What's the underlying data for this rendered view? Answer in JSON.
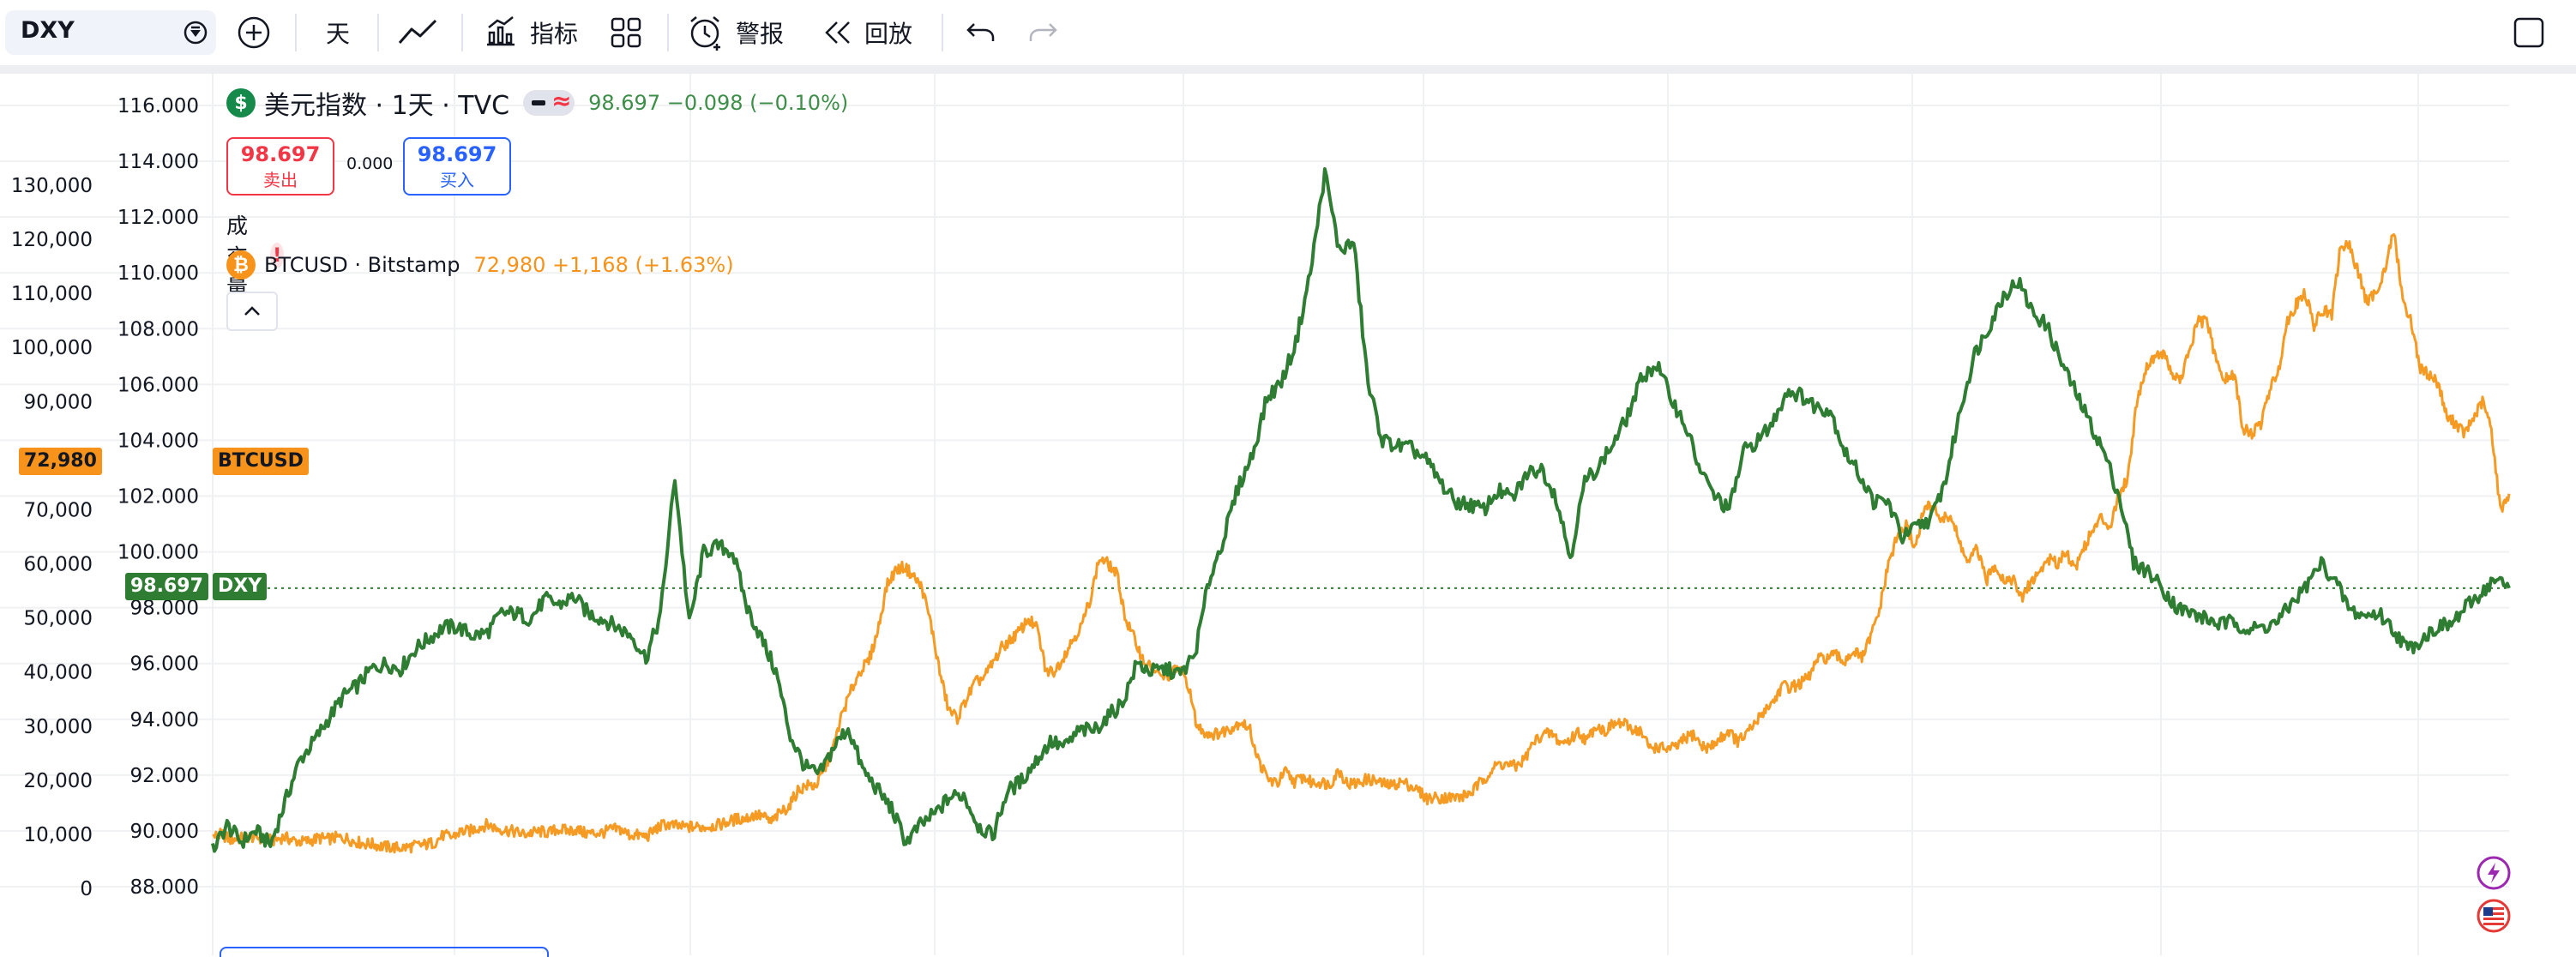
{
  "toolbar": {
    "symbol": "DXY",
    "interval": "天",
    "indicators_label": "指标",
    "alerts_label": "警报",
    "replay_label": "回放"
  },
  "legend": {
    "main_title": "美元指数 · 1天 · TVC",
    "main_values": "98.697 −0.098 (−0.10%)",
    "sell_price": "98.697",
    "sell_label": "卖出",
    "spread": "0.000",
    "buy_price": "98.697",
    "buy_label": "买入",
    "volume_label": "成交量",
    "warning_glyph": "!",
    "compare_title": "BTCUSD · Bitstamp",
    "compare_values": "72,980 +1,168 (+1.63%)"
  },
  "tags": {
    "btc_left_value": "72,980",
    "btc_series_tag": "BTCUSD",
    "dxy_value": "98.697",
    "dxy_series_tag": "DXY"
  },
  "colors": {
    "dxy_line": "#2e7d32",
    "btc_line": "#f59a23",
    "grid": "#f0f1f3"
  },
  "icons": [
    "add-symbol-icon",
    "line-chart-icon",
    "indicators-icon",
    "layout-grid-icon",
    "alert-clock-icon",
    "replay-icon",
    "undo-icon",
    "redo-icon",
    "fullscreen-icon",
    "lightning-icon",
    "us-flag-icon"
  ],
  "chart_data": {
    "type": "line",
    "left_axis_ticks": [
      "130,000",
      "120,000",
      "110,000",
      "100,000",
      "90,000",
      "80,000",
      "70,000",
      "60,000",
      "50,000",
      "40,000",
      "30,000",
      "20,000",
      "10,000",
      "0"
    ],
    "right_axis_ticks": [
      "116.000",
      "114.000",
      "112.000",
      "110.000",
      "108.000",
      "106.000",
      "104.000",
      "102.000",
      "100.000",
      "98.000",
      "96.000",
      "94.000",
      "92.000",
      "90.000",
      "88.000"
    ],
    "left_axis_range": [
      0,
      130000
    ],
    "right_axis_range": [
      88,
      116
    ],
    "grid": true,
    "series": [
      {
        "name": "DXY",
        "axis": "right",
        "values": [
          89.3,
          90.2,
          89.6,
          90.0,
          89.5,
          91.0,
          92.5,
          93.2,
          94.0,
          94.8,
          95.2,
          95.8,
          96.0,
          95.8,
          96.5,
          96.9,
          97.3,
          97.3,
          97.0,
          97.1,
          97.8,
          97.8,
          97.6,
          98.3,
          98.1,
          98.4,
          97.8,
          97.6,
          97.3,
          97.0,
          96.2,
          97.7,
          102.7,
          97.4,
          100.0,
          100.2,
          100.0,
          98.0,
          96.9,
          95.7,
          93.4,
          92.3,
          92.0,
          93.0,
          93.7,
          92.2,
          91.5,
          90.8,
          89.6,
          90.2,
          90.6,
          91.2,
          91.3,
          90.2,
          89.8,
          91.4,
          91.8,
          92.5,
          93.2,
          93.0,
          93.6,
          93.6,
          94.1,
          94.6,
          96.0,
          95.7,
          95.8,
          95.6,
          96.3,
          99.0,
          100.5,
          102.3,
          103.5,
          105.5,
          106.1,
          107.5,
          110.0,
          113.6,
          110.8,
          111.1,
          106.0,
          104.0,
          103.8,
          103.7,
          103.3,
          102.5,
          101.8,
          101.7,
          101.5,
          102.2,
          101.9,
          102.8,
          103.0,
          102.0,
          99.8,
          102.5,
          103.1,
          103.9,
          104.9,
          106.3,
          106.7,
          105.5,
          104.5,
          102.9,
          102.0,
          101.5,
          103.6,
          104.0,
          104.6,
          105.8,
          105.6,
          105.2,
          105.1,
          103.6,
          102.8,
          101.8,
          101.8,
          100.5,
          100.9,
          101.2,
          102.6,
          105.1,
          107.1,
          108.1,
          109.2,
          109.7,
          108.6,
          108.1,
          106.8,
          105.7,
          104.6,
          103.5,
          102.0,
          99.6,
          99.3,
          98.7,
          98.0,
          97.8,
          97.6,
          97.4,
          97.5,
          97.2,
          97.3,
          97.5,
          98.2,
          98.8,
          99.6,
          98.9,
          97.9,
          97.7,
          97.8,
          97.2,
          96.5,
          96.9,
          97.3,
          97.4,
          98.0,
          98.5,
          99.0,
          98.7
        ]
      },
      {
        "name": "BTCUSD",
        "axis": "left",
        "values": [
          9500,
          10000,
          9000,
          9200,
          9500,
          9500,
          8900,
          8900,
          9500,
          8900,
          8600,
          8800,
          9300,
          9100,
          9400,
          9300,
          8700,
          8300,
          8200,
          7800,
          7600,
          7500,
          7600,
          7900,
          8100,
          8500,
          9800,
          9500,
          10500,
          10600,
          11300,
          11800,
          11100,
          10800,
          10500,
          10000,
          10300,
          10500,
          10300,
          11000,
          10600,
          10900,
          10200,
          10200,
          10300,
          10900,
          10900,
          9900,
          9800,
          9600,
          11000,
          11900,
          11600,
          11300,
          11400,
          11300,
          11500,
          11700,
          12200,
          12800,
          12900,
          13500,
          13400,
          12200,
          14000,
          15200,
          18100,
          19000,
          19000,
          21900,
          26000,
          32300,
          36500,
          40200,
          42000,
          47500,
          55800,
          58800,
          59500,
          57800,
          55600,
          49000,
          40000,
          33000,
          31500,
          35000,
          38000,
          39000,
          41700,
          44500,
          46000,
          47500,
          49800,
          48000,
          40000,
          40200,
          43000,
          46000,
          48500,
          53700,
          61000,
          60000,
          58000,
          49500,
          46000,
          42000,
          40500,
          39000,
          39500,
          41000,
          37800,
          30000,
          28800,
          28500,
          29000,
          29800,
          30900,
          29200,
          23400,
          20300,
          19300,
          21500,
          19700,
          20600,
          19500,
          19700,
          19200,
          21900,
          19300,
          19400,
          20100,
          20000,
          19300,
          19000,
          19700,
          19100,
          18000,
          16600,
          16800,
          16800,
          16800,
          17000,
          17800,
          19600,
          21400,
          23000,
          22900,
          22500,
          24000,
          27000,
          28500,
          28600,
          26900,
          27300,
          29000,
          27200,
          30300,
          29000,
          30400,
          30500,
          29600,
          29100,
          26100,
          26100,
          25800,
          26000,
          27600,
          28500,
          26200,
          26100,
          27700,
          29100,
          27100,
          28500,
          30500,
          33000,
          34500,
          37400,
          37200,
          37800,
          39000,
          42300,
          42600,
          43100,
          41900,
          44000,
          42500,
          46500,
          51500,
          60000,
          65000,
          67000,
          63000,
          70000,
          71000,
          68000,
          69000,
          64000,
          60000,
          63000,
          56700,
          60000,
          57000,
          57300,
          53500,
          56500,
          58400,
          61000,
          60000,
          62500,
          59000,
          63000,
          66000,
          68500,
          67000,
          73000,
          76000,
          90000,
          96000,
          98500,
          99000,
          95000,
          94000,
          100000,
          105000,
          104500,
          97000,
          94000,
          95000,
          85000,
          84000,
          86000,
          92000,
          96000,
          105000,
          108000,
          110000,
          104000,
          107000,
          106000,
          119000,
          118500,
          114000,
          108000,
          110500,
          114500,
          121500,
          109000,
          104500,
          96000,
          95000,
          93500,
          87000,
          86000,
          84000,
          87000,
          90000,
          85000,
          70000,
          72980
        ]
      }
    ]
  }
}
